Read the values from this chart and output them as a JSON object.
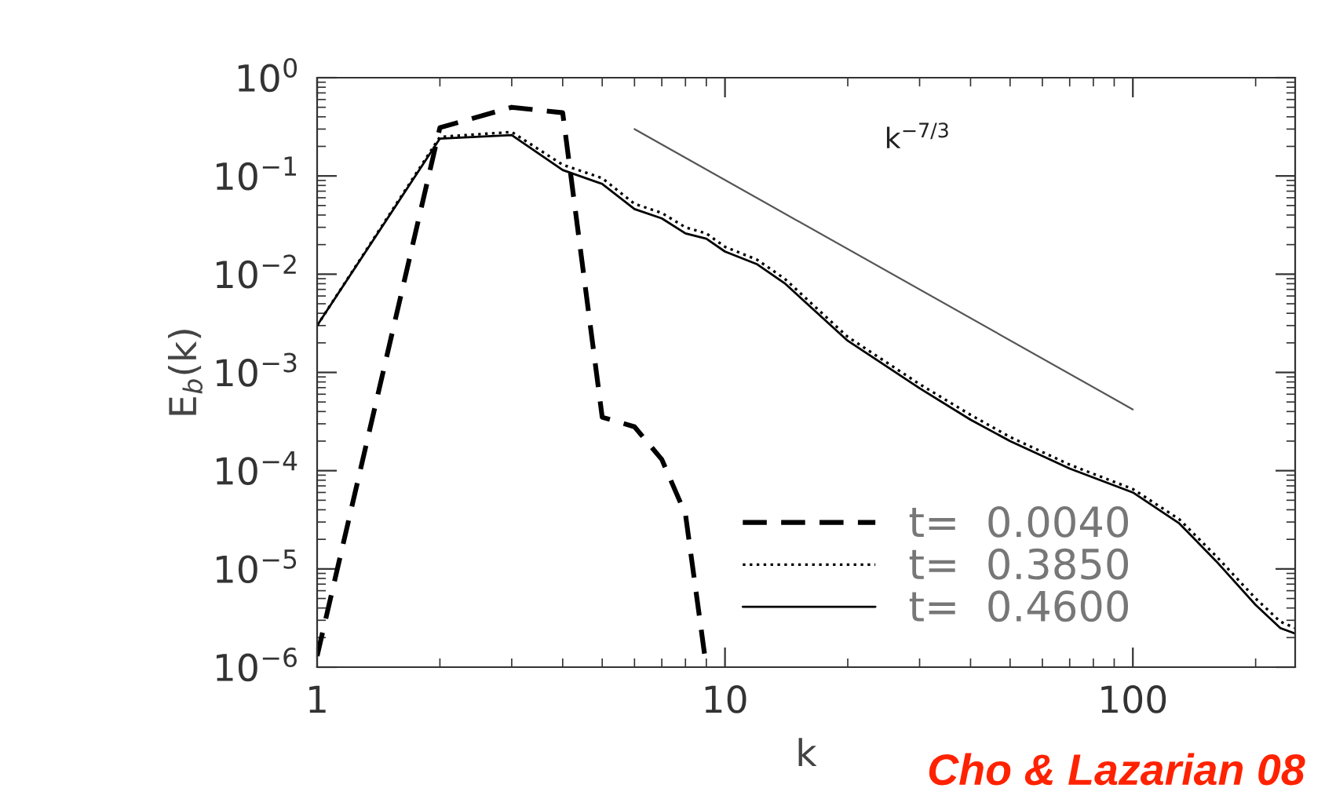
{
  "chart_data": {
    "type": "line",
    "log": "xy",
    "xlabel": "k",
    "ylabel": "E$_{b}$(k)",
    "xlim": [
      1,
      250
    ],
    "ylim": [
      1e-06,
      1
    ],
    "xticks": [
      1,
      10,
      100
    ],
    "yticks": [
      {
        "value": 1e-06,
        "label": "10$^{−6}$"
      },
      {
        "value": 1e-05,
        "label": "10$^{−5}$"
      },
      {
        "value": 0.0001,
        "label": "10$^{−4}$"
      },
      {
        "value": 0.001,
        "label": "10$^{−3}$"
      },
      {
        "value": 0.01,
        "label": "10$^{−2}$"
      },
      {
        "value": 0.1,
        "label": "10$^{−1}$"
      },
      {
        "value": 1,
        "label": "10$^{0}$"
      }
    ],
    "grid": false,
    "legend": "bottom right",
    "series": [
      {
        "name": "t=  0.0040",
        "color": "#000000",
        "line_style": "dashed",
        "x": [
          1,
          2,
          3,
          4,
          5,
          6,
          7,
          8,
          9
        ],
        "values": [
          1.3e-06,
          0.31,
          0.5,
          0.44,
          0.00035,
          0.00028,
          0.00013,
          3.6e-05,
          1e-06
        ]
      },
      {
        "name": "t=  0.3850",
        "color": "#000000",
        "line_style": "dotted",
        "x": [
          1,
          2,
          3,
          4,
          5,
          6,
          7,
          8,
          9,
          10,
          12,
          14,
          20,
          30,
          40,
          50,
          70,
          100,
          130,
          160,
          200,
          230,
          250
        ],
        "values": [
          0.003,
          0.25,
          0.28,
          0.13,
          0.095,
          0.052,
          0.042,
          0.03,
          0.026,
          0.019,
          0.014,
          0.009,
          0.0023,
          0.00076,
          0.00037,
          0.00022,
          0.000115,
          6.5e-05,
          3.2e-05,
          1.35e-05,
          5e-06,
          2.9e-06,
          2.5e-06
        ]
      },
      {
        "name": "t=  0.4600",
        "color": "#000000",
        "line_style": "solid",
        "x": [
          1,
          2,
          3,
          4,
          5,
          6,
          7,
          8,
          9,
          10,
          12,
          14,
          20,
          30,
          40,
          50,
          70,
          100,
          130,
          160,
          200,
          230,
          250
        ],
        "values": [
          0.003,
          0.24,
          0.26,
          0.115,
          0.083,
          0.046,
          0.037,
          0.026,
          0.023,
          0.017,
          0.0126,
          0.0081,
          0.0021,
          0.00069,
          0.00033,
          0.0002,
          0.000105,
          6e-05,
          2.9e-05,
          1.2e-05,
          4.3e-06,
          2.5e-06,
          2.2e-06
        ]
      },
      {
        "color": "#555555",
        "line_style": "solid",
        "x": [
          6,
          100
        ],
        "values": [
          0.3,
          0.00042
        ]
      }
    ],
    "annotations": [
      "k$^{−7/3}$",
      "Cho & Lazarian 08"
    ]
  }
}
